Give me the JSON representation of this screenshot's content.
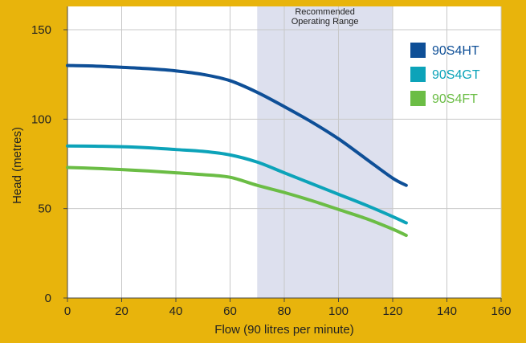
{
  "chart_data": {
    "type": "line",
    "xlabel": "Flow (90 litres per minute)",
    "ylabel": "Head (metres)",
    "xlim": [
      0,
      160
    ],
    "ylim": [
      0,
      150
    ],
    "xticks": [
      0,
      20,
      40,
      60,
      80,
      100,
      120,
      140,
      160
    ],
    "yticks": [
      0,
      50,
      100,
      150
    ],
    "grid": true,
    "legend_position": "top-right",
    "colors": {
      "background": "#E8B40C",
      "plot_background": "#FFFFFF",
      "grid": "#C8C8C8",
      "band": "#DDE0EE"
    },
    "band": {
      "label_line1": "Recommended",
      "label_line2": "Operating Range",
      "x_range": [
        70,
        120
      ]
    },
    "series": [
      {
        "name": "90S4HT",
        "color": "#0E4F97",
        "x": [
          0,
          10,
          20,
          30,
          40,
          50,
          60,
          70,
          80,
          90,
          100,
          110,
          120,
          125
        ],
        "y": [
          130,
          129.7,
          129,
          128.2,
          127,
          125,
          121.5,
          115,
          107,
          98.5,
          89,
          78,
          67,
          63
        ]
      },
      {
        "name": "90S4GT",
        "color": "#0CA3B9",
        "x": [
          0,
          10,
          20,
          30,
          40,
          50,
          60,
          70,
          80,
          90,
          100,
          110,
          120,
          125
        ],
        "y": [
          85,
          84.9,
          84.6,
          84,
          83,
          82,
          80,
          76,
          70,
          64,
          58,
          52,
          45.5,
          42
        ]
      },
      {
        "name": "90S4FT",
        "color": "#6BBD45",
        "x": [
          0,
          10,
          20,
          30,
          40,
          50,
          60,
          70,
          80,
          90,
          100,
          110,
          120,
          125
        ],
        "y": [
          73,
          72.5,
          71.8,
          71,
          70,
          69,
          67.5,
          63,
          59,
          54.5,
          49.5,
          44.5,
          38.5,
          35
        ]
      }
    ]
  }
}
